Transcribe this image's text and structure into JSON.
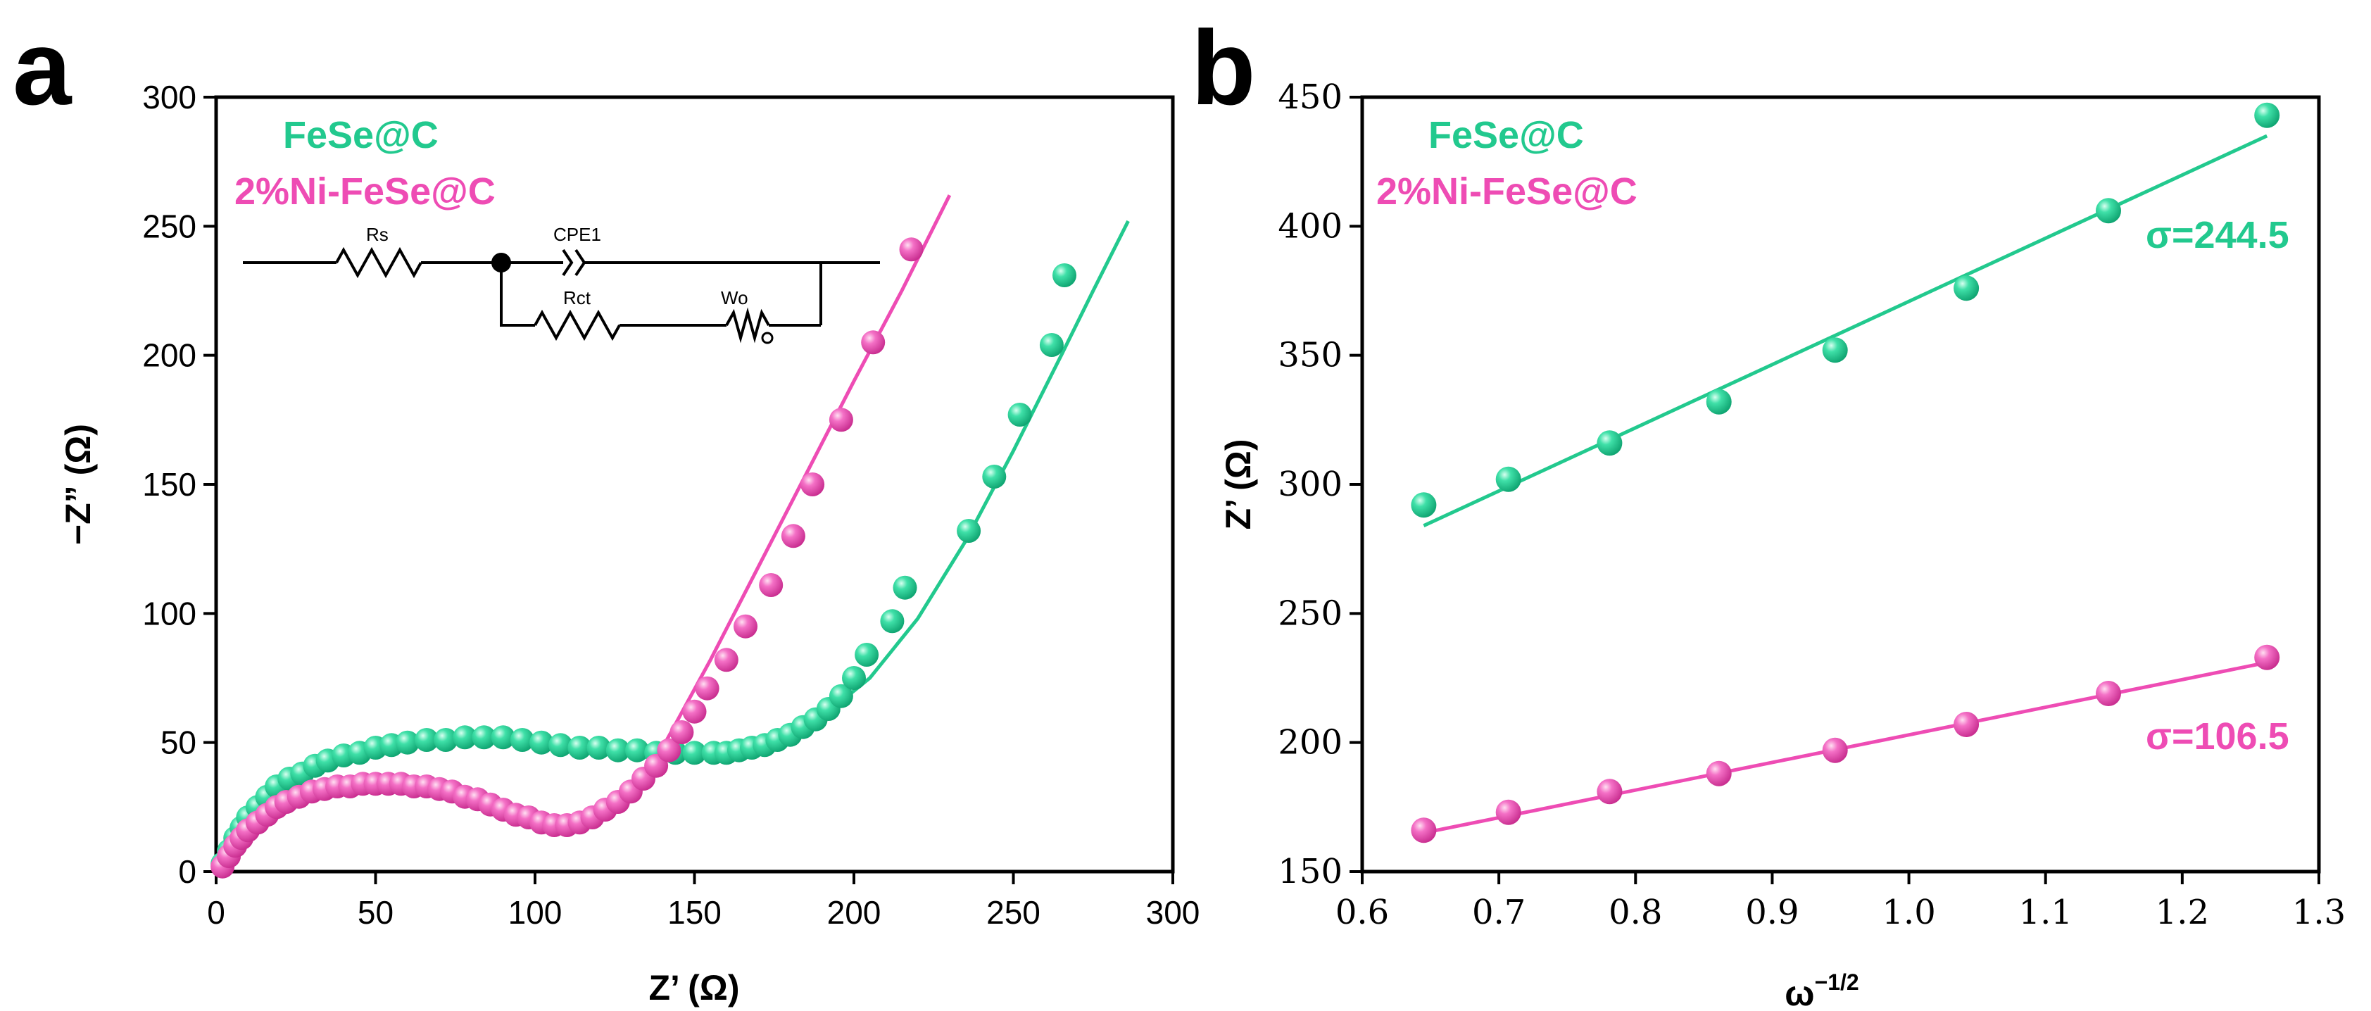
{
  "colors": {
    "green": "#22C98E",
    "pink": "#EE4CB4",
    "axis": "#000000"
  },
  "panel_a": {
    "letter": "a",
    "xlabel": "Z’ (Ω)",
    "ylabel": "−Z” (Ω)",
    "legend": [
      "FeSe@C",
      "2%Ni-FeSe@C"
    ],
    "circuit": {
      "labels": [
        "Rs",
        "CPE1",
        "Rct",
        "Wo"
      ]
    }
  },
  "panel_b": {
    "letter": "b",
    "xlabel": "ω",
    "xlabel_sup": "−1/2",
    "ylabel": "Z’ (Ω)",
    "legend": [
      "FeSe@C",
      "2%Ni-FeSe@C"
    ],
    "annotations": [
      "σ=244.5",
      "σ=106.5"
    ]
  },
  "chart_data": [
    {
      "type": "scatter",
      "xlim": [
        0,
        300
      ],
      "ylim": [
        0,
        300
      ],
      "xticks": [
        "0",
        "50",
        "100",
        "150",
        "200",
        "250",
        "300"
      ],
      "yticks": [
        "0",
        "50",
        "100",
        "150",
        "200",
        "250",
        "300"
      ],
      "series": [
        {
          "name": "FeSe@C",
          "color": "#22C98E",
          "points": [
            [
              2,
              3
            ],
            [
              4,
              8
            ],
            [
              6,
              13
            ],
            [
              8,
              17
            ],
            [
              10,
              21
            ],
            [
              13,
              25
            ],
            [
              16,
              29
            ],
            [
              19,
              33
            ],
            [
              23,
              36
            ],
            [
              27,
              38
            ],
            [
              31,
              41
            ],
            [
              35,
              43
            ],
            [
              40,
              45
            ],
            [
              45,
              46
            ],
            [
              50,
              48
            ],
            [
              55,
              49
            ],
            [
              60,
              50
            ],
            [
              66,
              51
            ],
            [
              72,
              51
            ],
            [
              78,
              52
            ],
            [
              84,
              52
            ],
            [
              90,
              52
            ],
            [
              96,
              51
            ],
            [
              102,
              50
            ],
            [
              108,
              49
            ],
            [
              114,
              48
            ],
            [
              120,
              48
            ],
            [
              126,
              47
            ],
            [
              132,
              47
            ],
            [
              138,
              46
            ],
            [
              144,
              46
            ],
            [
              150,
              46
            ],
            [
              156,
              46
            ],
            [
              160,
              46
            ],
            [
              164,
              47
            ],
            [
              168,
              48
            ],
            [
              172,
              49
            ],
            [
              176,
              51
            ],
            [
              180,
              53
            ],
            [
              184,
              56
            ],
            [
              188,
              59
            ],
            [
              192,
              63
            ],
            [
              196,
              68
            ],
            [
              200,
              75
            ],
            [
              204,
              84
            ],
            [
              212,
              97
            ],
            [
              216,
              110
            ],
            [
              236,
              132
            ],
            [
              244,
              153
            ],
            [
              252,
              177
            ],
            [
              262,
              204
            ],
            [
              266,
              231
            ]
          ],
          "fit": [
            [
              2,
              3
            ],
            [
              8,
              17
            ],
            [
              16,
              30
            ],
            [
              26,
              39
            ],
            [
              40,
              46
            ],
            [
              60,
              50
            ],
            [
              80,
              52
            ],
            [
              100,
              51
            ],
            [
              120,
              48
            ],
            [
              140,
              46
            ],
            [
              160,
              47
            ],
            [
              175,
              51
            ],
            [
              190,
              60
            ],
            [
              205,
              75
            ],
            [
              220,
              98
            ],
            [
              235,
              128
            ],
            [
              250,
              163
            ],
            [
              265,
              200
            ],
            [
              275,
              225
            ],
            [
              286,
              252
            ]
          ]
        },
        {
          "name": "2%Ni-FeSe@C",
          "color": "#EE4CB4",
          "points": [
            [
              2,
              2
            ],
            [
              4,
              6
            ],
            [
              6,
              10
            ],
            [
              8,
              13
            ],
            [
              10,
              16
            ],
            [
              13,
              19
            ],
            [
              16,
              22
            ],
            [
              19,
              25
            ],
            [
              22,
              27
            ],
            [
              26,
              29
            ],
            [
              30,
              31
            ],
            [
              34,
              32
            ],
            [
              38,
              33
            ],
            [
              42,
              33
            ],
            [
              46,
              34
            ],
            [
              50,
              34
            ],
            [
              54,
              34
            ],
            [
              58,
              34
            ],
            [
              62,
              33
            ],
            [
              66,
              33
            ],
            [
              70,
              32
            ],
            [
              74,
              31
            ],
            [
              78,
              29
            ],
            [
              82,
              28
            ],
            [
              86,
              26
            ],
            [
              90,
              24
            ],
            [
              94,
              22
            ],
            [
              98,
              21
            ],
            [
              102,
              19
            ],
            [
              106,
              18
            ],
            [
              110,
              18
            ],
            [
              114,
              19
            ],
            [
              118,
              21
            ],
            [
              122,
              24
            ],
            [
              126,
              27
            ],
            [
              130,
              31
            ],
            [
              134,
              36
            ],
            [
              138,
              41
            ],
            [
              142,
              47
            ],
            [
              146,
              54
            ],
            [
              150,
              62
            ],
            [
              154,
              71
            ],
            [
              160,
              82
            ],
            [
              166,
              95
            ],
            [
              174,
              111
            ],
            [
              181,
              130
            ],
            [
              187,
              150
            ],
            [
              196,
              175
            ],
            [
              206,
              205
            ],
            [
              218,
              241
            ]
          ],
          "fit": [
            [
              2,
              2
            ],
            [
              10,
              16
            ],
            [
              20,
              25
            ],
            [
              35,
              32
            ],
            [
              55,
              34
            ],
            [
              75,
              30
            ],
            [
              90,
              25
            ],
            [
              100,
              21
            ],
            [
              108,
              18
            ],
            [
              115,
              19
            ],
            [
              122,
              23
            ],
            [
              130,
              32
            ],
            [
              140,
              48
            ],
            [
              155,
              82
            ],
            [
              170,
              118
            ],
            [
              185,
              154
            ],
            [
              200,
              190
            ],
            [
              215,
              225
            ],
            [
              230,
              262
            ]
          ]
        }
      ]
    },
    {
      "type": "scatter",
      "xlim": [
        0.6,
        1.3
      ],
      "ylim": [
        150,
        450
      ],
      "xticks": [
        "0.6",
        "0.7",
        "0.8",
        "0.9",
        "1.0",
        "1.1",
        "1.2",
        "1.3"
      ],
      "yticks": [
        "150",
        "200",
        "250",
        "300",
        "350",
        "400",
        "450"
      ],
      "series": [
        {
          "name": "FeSe@C",
          "color": "#22C98E",
          "x": [
            0.645,
            0.707,
            0.781,
            0.861,
            0.946,
            1.042,
            1.146,
            1.262
          ],
          "y": [
            292,
            302,
            316,
            332,
            352,
            376,
            406,
            443
          ],
          "fit": [
            [
              0.645,
              284
            ],
            [
              1.262,
              435
            ]
          ]
        },
        {
          "name": "2%Ni-FeSe@C",
          "color": "#EE4CB4",
          "x": [
            0.645,
            0.707,
            0.781,
            0.861,
            0.946,
            1.042,
            1.146,
            1.262
          ],
          "y": [
            166,
            173,
            181,
            188,
            197,
            207,
            219,
            233
          ],
          "fit": [
            [
              0.645,
              165
            ],
            [
              1.262,
              231
            ]
          ]
        }
      ]
    }
  ]
}
